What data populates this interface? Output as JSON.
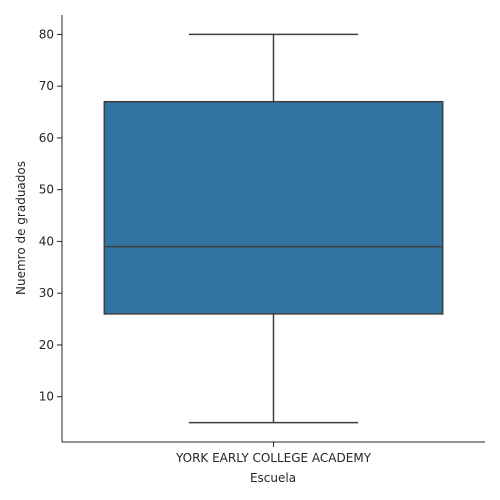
{
  "chart_data": {
    "type": "box",
    "xlabel": "Escuela",
    "ylabel": "Nuemro de graduados",
    "categories": [
      "YORK EARLY COLLEGE ACADEMY"
    ],
    "boxes": [
      {
        "category": "YORK EARLY COLLEGE ACADEMY",
        "min": 5,
        "q1": 26,
        "median": 39,
        "q3": 67,
        "max": 80
      }
    ],
    "ylim": [
      1.25,
      83.75
    ],
    "yticks": [
      10,
      20,
      30,
      40,
      50,
      60,
      70,
      80
    ],
    "grid": false,
    "box_color": "#3274a1",
    "line_color": "#3f3f3f"
  }
}
